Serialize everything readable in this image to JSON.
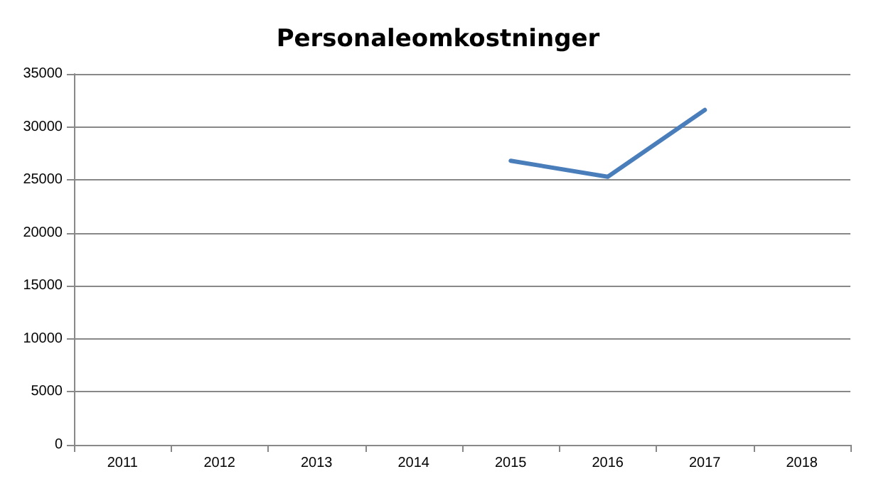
{
  "chart_data": {
    "type": "line",
    "title": "Personaleomkostninger",
    "categories": [
      "2011",
      "2012",
      "2013",
      "2014",
      "2015",
      "2016",
      "2017",
      "2018"
    ],
    "series": [
      {
        "color": "#4a7ebb",
        "values": [
          null,
          null,
          null,
          null,
          26800,
          25300,
          31600,
          null
        ]
      }
    ],
    "ylim": [
      0,
      35000
    ],
    "yticks": [
      0,
      5000,
      10000,
      15000,
      20000,
      25000,
      30000,
      35000
    ],
    "grid": "y",
    "marker": "none",
    "line_style": "solid"
  }
}
